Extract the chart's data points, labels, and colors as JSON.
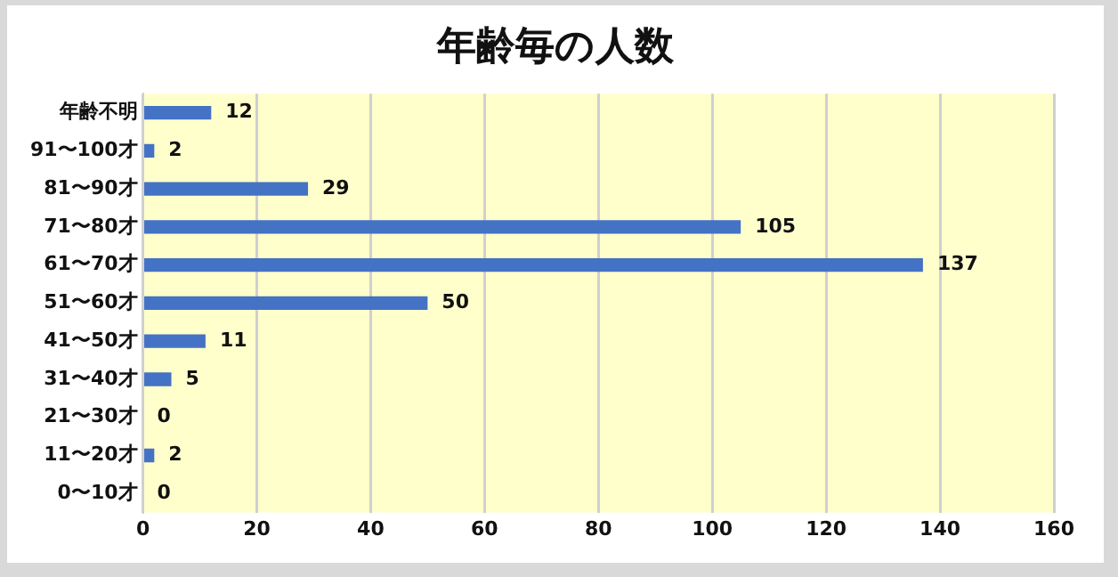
{
  "chart_data": {
    "type": "bar",
    "orientation": "horizontal",
    "title": "年齢毎の人数",
    "categories": [
      "年齢不明",
      "91〜100才",
      "81〜90才",
      "71〜80才",
      "61〜70才",
      "51〜60才",
      "41〜50才",
      "31〜40才",
      "21〜30才",
      "11〜20才",
      "0〜10才"
    ],
    "values": [
      12,
      2,
      29,
      105,
      137,
      50,
      11,
      5,
      0,
      2,
      0
    ],
    "color": "#4472c4",
    "xlim": [
      0,
      160
    ],
    "xticks": [
      0,
      20,
      40,
      60,
      80,
      100,
      120,
      140,
      160
    ],
    "grid": "x",
    "data_labels": true
  }
}
